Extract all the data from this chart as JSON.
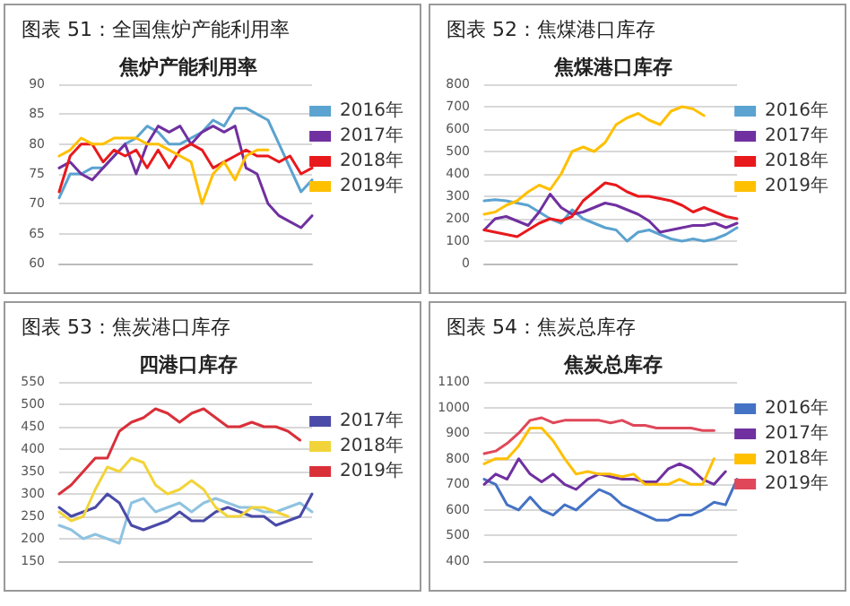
{
  "chart_data": [
    {
      "type": "line",
      "title": "图表 51：全国焦炉产能利用率",
      "subtitle": "焦炉产能利用率",
      "categories": [
        null,
        null,
        null,
        null,
        null,
        null,
        null,
        null,
        null,
        null,
        null,
        null,
        null,
        null,
        null,
        null,
        null,
        null,
        null,
        null,
        null,
        null,
        null,
        null
      ],
      "ylim": [
        60,
        90
      ],
      "yticks": [
        60,
        65,
        70,
        75,
        80,
        85,
        90
      ],
      "grid": "y",
      "legend": "right",
      "tick_labels": "y",
      "series": [
        {
          "name": "2016年",
          "color": "#5ba3d0",
          "values": [
            71,
            75,
            75,
            76,
            76,
            78,
            80,
            81,
            83,
            82,
            80,
            80,
            81,
            82,
            84,
            83,
            86,
            86,
            85,
            84,
            80,
            76,
            72,
            74
          ]
        },
        {
          "name": "2017年",
          "color": "#7030a0",
          "values": [
            76,
            77,
            75,
            74,
            76,
            78,
            80,
            75,
            80,
            83,
            82,
            83,
            80,
            82,
            83,
            82,
            83,
            76,
            75,
            70,
            68,
            67,
            66,
            68
          ]
        },
        {
          "name": "2018年",
          "color": "#e8191c",
          "values": [
            72,
            78,
            80,
            80,
            77,
            79,
            78,
            79,
            76,
            79,
            76,
            79,
            80,
            79,
            76,
            77,
            78,
            79,
            78,
            78,
            77,
            78,
            75,
            76
          ]
        },
        {
          "name": "2019年",
          "color": "#ffc000",
          "values": [
            78,
            79,
            81,
            80,
            80,
            81,
            81,
            81,
            80,
            80,
            79,
            78,
            77,
            70,
            75,
            77,
            74,
            78,
            79,
            79,
            null,
            null,
            null,
            null
          ]
        }
      ]
    },
    {
      "type": "line",
      "title": "图表 52：焦煤港口库存",
      "subtitle": "焦煤港口库存",
      "categories": [
        null,
        null,
        null,
        null,
        null,
        null,
        null,
        null,
        null,
        null,
        null,
        null,
        null,
        null,
        null,
        null,
        null,
        null,
        null,
        null,
        null,
        null,
        null,
        null
      ],
      "ylim": [
        0,
        800
      ],
      "yticks": [
        0,
        100,
        200,
        300,
        400,
        500,
        600,
        700,
        800
      ],
      "grid": "y",
      "legend": "right",
      "tick_labels": "y",
      "series": [
        {
          "name": "2016年",
          "color": "#5ba3d0",
          "values": [
            280,
            285,
            280,
            270,
            260,
            230,
            200,
            180,
            240,
            200,
            180,
            160,
            150,
            100,
            140,
            150,
            130,
            110,
            100,
            110,
            100,
            110,
            130,
            160
          ]
        },
        {
          "name": "2017年",
          "color": "#7030a0",
          "values": [
            150,
            200,
            210,
            190,
            170,
            230,
            310,
            250,
            220,
            230,
            250,
            270,
            260,
            240,
            220,
            190,
            140,
            150,
            160,
            170,
            170,
            180,
            160,
            180
          ]
        },
        {
          "name": "2018年",
          "color": "#e8191c",
          "values": [
            150,
            140,
            130,
            120,
            150,
            180,
            200,
            190,
            210,
            280,
            320,
            360,
            350,
            320,
            300,
            300,
            290,
            280,
            260,
            230,
            250,
            230,
            210,
            200
          ]
        },
        {
          "name": "2019年",
          "color": "#ffc000",
          "values": [
            220,
            230,
            260,
            280,
            320,
            350,
            330,
            400,
            500,
            520,
            500,
            540,
            620,
            650,
            670,
            640,
            620,
            680,
            700,
            690,
            660,
            null,
            null,
            null
          ]
        }
      ]
    },
    {
      "type": "line",
      "title": "图表 53：焦炭港口库存",
      "subtitle": "四港口库存",
      "categories": [
        null,
        null,
        null,
        null,
        null,
        null,
        null,
        null,
        null,
        null,
        null,
        null,
        null,
        null,
        null,
        null,
        null,
        null,
        null,
        null,
        null,
        null
      ],
      "ylim": [
        150,
        550
      ],
      "yticks": [
        150,
        200,
        250,
        300,
        350,
        400,
        450,
        500,
        550
      ],
      "grid": "y",
      "legend": "right",
      "tick_labels": "y",
      "series": [
        {
          "color": "#8fc3e0",
          "values": [
            230,
            220,
            200,
            210,
            200,
            190,
            280,
            290,
            260,
            270,
            280,
            260,
            280,
            290,
            280,
            270,
            270,
            260,
            260,
            270,
            280,
            260
          ]
        },
        {
          "name": "2017年",
          "color": "#4a4aa8",
          "values": [
            270,
            250,
            260,
            270,
            300,
            280,
            230,
            220,
            230,
            240,
            260,
            240,
            240,
            260,
            270,
            260,
            250,
            250,
            230,
            240,
            250,
            300
          ]
        },
        {
          "name": "2018年",
          "color": "#f2d43a",
          "values": [
            260,
            240,
            250,
            310,
            360,
            350,
            380,
            370,
            320,
            300,
            310,
            330,
            310,
            270,
            250,
            250,
            270,
            270,
            260,
            250,
            null,
            null
          ]
        },
        {
          "name": "2019年",
          "color": "#d9303a",
          "values": [
            300,
            320,
            350,
            380,
            380,
            440,
            460,
            470,
            490,
            480,
            460,
            480,
            490,
            470,
            450,
            450,
            460,
            450,
            450,
            440,
            420,
            null
          ]
        }
      ]
    },
    {
      "type": "line",
      "title": "图表 54：焦炭总库存",
      "subtitle": "焦炭总库存",
      "categories": [
        null,
        null,
        null,
        null,
        null,
        null,
        null,
        null,
        null,
        null,
        null,
        null,
        null,
        null,
        null,
        null,
        null,
        null,
        null,
        null,
        null,
        null,
        null
      ],
      "ylim": [
        400,
        1100
      ],
      "yticks": [
        400,
        500,
        600,
        700,
        800,
        900,
        1000,
        1100
      ],
      "grid": "y",
      "legend": "right",
      "tick_labels": "y",
      "series": [
        {
          "name": "2016年",
          "color": "#4472c4",
          "values": [
            720,
            700,
            620,
            600,
            650,
            600,
            580,
            620,
            600,
            640,
            680,
            660,
            620,
            600,
            580,
            560,
            560,
            580,
            580,
            600,
            630,
            620,
            720
          ]
        },
        {
          "name": "2017年",
          "color": "#7030a0",
          "values": [
            700,
            740,
            720,
            800,
            740,
            710,
            740,
            700,
            680,
            720,
            740,
            730,
            720,
            720,
            710,
            710,
            760,
            780,
            760,
            720,
            700,
            750,
            null
          ]
        },
        {
          "name": "2018年",
          "color": "#ffc000",
          "values": [
            780,
            800,
            800,
            850,
            920,
            920,
            870,
            800,
            740,
            750,
            740,
            740,
            730,
            740,
            700,
            700,
            700,
            720,
            700,
            700,
            800,
            null,
            null
          ]
        },
        {
          "name": "2019年",
          "color": "#e0485a",
          "values": [
            820,
            830,
            860,
            900,
            950,
            960,
            940,
            950,
            950,
            950,
            950,
            940,
            950,
            930,
            930,
            920,
            920,
            920,
            920,
            910,
            910,
            null,
            null
          ]
        }
      ]
    }
  ]
}
